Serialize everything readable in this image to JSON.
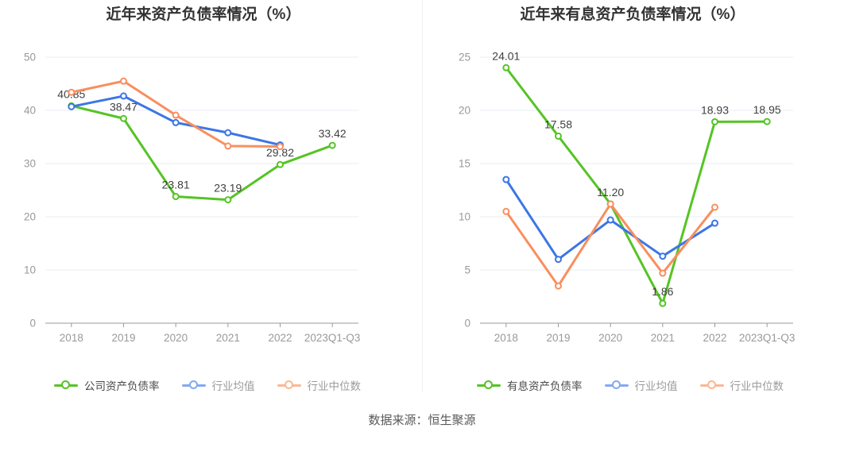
{
  "caption": "数据来源：恒生聚源",
  "colors": {
    "green": "#55c425",
    "blue": "#3c76e4",
    "orange": "#f98e5e",
    "legend_green": "#55c425",
    "legend_blue": "#84a9f1",
    "legend_orange": "#fab795",
    "grid": "#e9eef6",
    "axis": "#999999",
    "tick_label": "#999999",
    "data_label": "#404040",
    "title": "#333333",
    "legend_text_active": "#4a4a4a",
    "legend_text_muted": "#9b9b9b"
  },
  "chart_data": [
    {
      "type": "line",
      "title": "近年来资产负债率情况（%）",
      "xlabel": "",
      "ylabel": "",
      "ylim": [
        0,
        50
      ],
      "yticks": [
        0,
        10,
        20,
        30,
        40,
        50
      ],
      "grid": true,
      "legend_position": "bottom-left",
      "categories": [
        "2018",
        "2019",
        "2020",
        "2021",
        "2022",
        "2023Q1-Q3"
      ],
      "series": [
        {
          "name": "公司资产负债率",
          "color_key": "green",
          "values": [
            40.85,
            38.47,
            23.81,
            23.19,
            29.82,
            33.42
          ],
          "labels": [
            "40.85",
            "38.47",
            "23.81",
            "23.19",
            "29.82",
            "33.42"
          ]
        },
        {
          "name": "行业均值",
          "color_key": "blue",
          "values": [
            40.7,
            42.7,
            37.7,
            35.8,
            33.5,
            null
          ]
        },
        {
          "name": "行业中位数",
          "color_key": "orange",
          "values": [
            43.4,
            45.5,
            39.1,
            33.3,
            33.2,
            null
          ]
        }
      ]
    },
    {
      "type": "line",
      "title": "近年来有息资产负债率情况（%）",
      "xlabel": "",
      "ylabel": "",
      "ylim": [
        0,
        25
      ],
      "yticks": [
        0,
        5,
        10,
        15,
        20,
        25
      ],
      "grid": true,
      "legend_position": "bottom-left",
      "categories": [
        "2018",
        "2019",
        "2020",
        "2021",
        "2022",
        "2023Q1-Q3"
      ],
      "series": [
        {
          "name": "有息资产负债率",
          "color_key": "green",
          "values": [
            24.01,
            17.58,
            11.2,
            1.86,
            18.93,
            18.95
          ],
          "labels": [
            "24.01",
            "17.58",
            "11.20",
            "1.86",
            "18.93",
            "18.95"
          ]
        },
        {
          "name": "行业均值",
          "color_key": "blue",
          "values": [
            13.5,
            6.0,
            9.7,
            6.3,
            9.4,
            null
          ]
        },
        {
          "name": "行业中位数",
          "color_key": "orange",
          "values": [
            10.5,
            3.5,
            11.2,
            4.7,
            10.9,
            null
          ]
        }
      ]
    }
  ]
}
